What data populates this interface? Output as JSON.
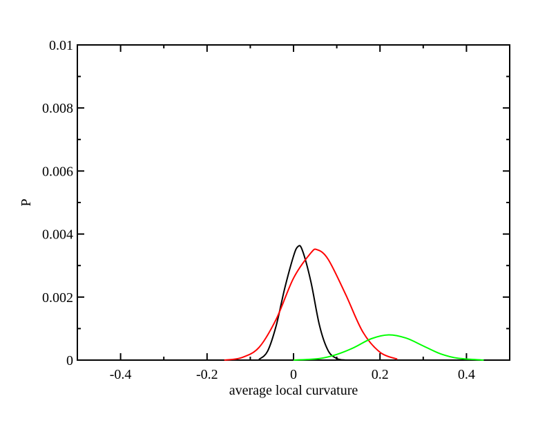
{
  "chart_data": {
    "type": "line",
    "title": "",
    "xlabel": "average local curvature",
    "ylabel": "P",
    "xlim": [
      -0.5,
      0.5
    ],
    "ylim": [
      0,
      0.01
    ],
    "x_ticks": [
      -0.4,
      -0.2,
      0,
      0.2,
      0.4
    ],
    "x_tick_labels": [
      "-0.4",
      "-0.2",
      "0",
      "0.2",
      "0.4"
    ],
    "y_ticks": [
      0,
      0.002,
      0.004,
      0.006,
      0.008,
      0.01
    ],
    "y_tick_labels": [
      "0",
      "0.002",
      "0.004",
      "0.006",
      "0.008",
      "0.01"
    ],
    "grid": false,
    "legend": "none",
    "series": [
      {
        "color": "#000000",
        "x": [
          -0.08,
          -0.06,
          -0.04,
          -0.02,
          0.0,
          0.01,
          0.02,
          0.04,
          0.06,
          0.08,
          0.1,
          0.12
        ],
        "y": [
          2e-05,
          0.00028,
          0.0011,
          0.0023,
          0.0033,
          0.0036,
          0.0035,
          0.0025,
          0.0011,
          0.0003,
          5e-05,
          0.0
        ]
      },
      {
        "color": "#ff0000",
        "x": [
          -0.16,
          -0.12,
          -0.08,
          -0.04,
          0.0,
          0.04,
          0.055,
          0.08,
          0.12,
          0.16,
          0.2,
          0.24
        ],
        "y": [
          0.0,
          8e-05,
          0.0004,
          0.0013,
          0.0026,
          0.0034,
          0.0035,
          0.0032,
          0.0021,
          0.0009,
          0.00025,
          3e-05
        ]
      },
      {
        "color": "#00ff00",
        "x": [
          0.0,
          0.06,
          0.1,
          0.14,
          0.18,
          0.22,
          0.26,
          0.3,
          0.34,
          0.38,
          0.44
        ],
        "y": [
          0.0,
          5e-05,
          0.00018,
          0.0004,
          0.00068,
          0.0008,
          0.0007,
          0.00045,
          0.0002,
          6e-05,
          0.0
        ]
      }
    ]
  }
}
